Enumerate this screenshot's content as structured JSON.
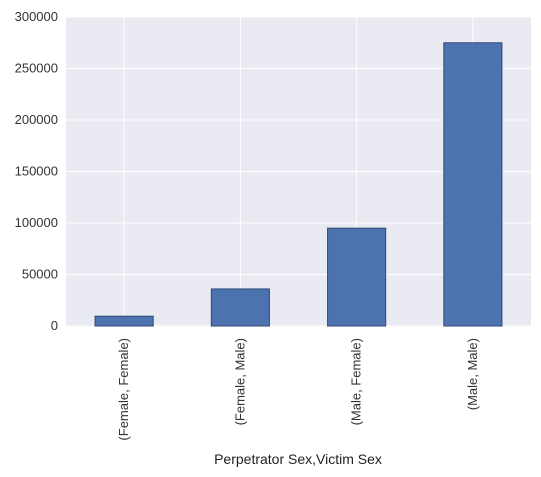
{
  "chart_data": {
    "type": "bar",
    "categories": [
      "(Female, Female)",
      "(Female, Male)",
      "(Male, Female)",
      "(Male, Male)"
    ],
    "values": [
      9500,
      36000,
      95000,
      275000
    ],
    "title": "",
    "xlabel": "Perpetrator Sex,Victim Sex",
    "ylabel": "",
    "ylim": [
      0,
      300000
    ],
    "yticks": [
      0,
      50000,
      100000,
      150000,
      200000,
      250000,
      300000
    ],
    "grid": true,
    "colors": {
      "bar": "#4c72b0",
      "bar_edge": "#2f4a75",
      "plot_background": "#eaeaf2",
      "grid": "#ffffff"
    }
  }
}
